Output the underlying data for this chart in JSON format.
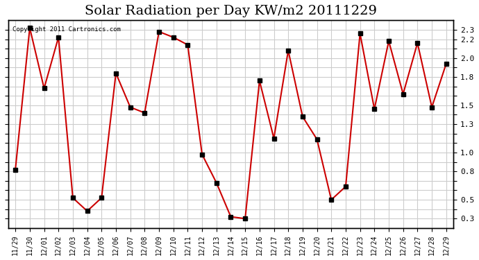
{
  "title": "Solar Radiation per Day KW/m2 20111229",
  "copyright_text": "Copyright 2011 Cartronics.com",
  "labels": [
    "11/29",
    "11/30",
    "12/01",
    "12/02",
    "12/03",
    "12/04",
    "12/05",
    "12/06",
    "12/07",
    "12/08",
    "12/09",
    "12/10",
    "12/11",
    "12/12",
    "12/13",
    "12/14",
    "12/15",
    "12/16",
    "12/17",
    "12/18",
    "12/19",
    "12/20",
    "12/21",
    "12/22",
    "12/23",
    "12/24",
    "12/25",
    "12/26",
    "12/27",
    "12/28",
    "12/29"
  ],
  "values": [
    0.82,
    2.32,
    1.68,
    2.22,
    0.52,
    0.38,
    0.52,
    1.84,
    1.48,
    1.42,
    2.28,
    2.22,
    2.14,
    0.98,
    0.68,
    0.32,
    0.3,
    1.76,
    1.15,
    2.08,
    1.38,
    1.14,
    0.5,
    0.64,
    2.26,
    1.46,
    2.18,
    1.62,
    2.16,
    1.48,
    1.94
  ],
  "line_color": "#cc0000",
  "marker": "s",
  "marker_color": "#000000",
  "marker_size": 4,
  "ylim": [
    0.2,
    2.4
  ],
  "yticks": [
    0.3,
    0.4,
    0.5,
    0.6,
    0.7,
    0.8,
    0.9,
    1.0,
    1.1,
    1.2,
    1.3,
    1.4,
    1.5,
    1.6,
    1.7,
    1.8,
    1.9,
    2.0,
    2.1,
    2.2,
    2.3
  ],
  "ytick_display": {
    "0.3": "0.3",
    "0.5": "0.5",
    "0.8": "0.8",
    "1.0": "1.0",
    "1.3": "1.3",
    "1.5": "1.5",
    "1.8": "1.8",
    "2.0": "2.0",
    "2.2": "2.2",
    "2.3": "2.3"
  },
  "background_color": "#ffffff",
  "grid_color": "#cccccc",
  "title_fontsize": 14
}
